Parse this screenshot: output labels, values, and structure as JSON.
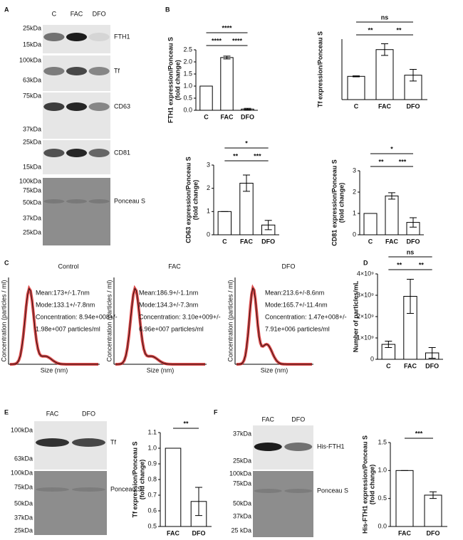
{
  "panel_letters": [
    "A",
    "B",
    "C",
    "D",
    "E",
    "F"
  ],
  "blots": [
    {
      "lanes": [
        "C",
        "FAC",
        "DFO"
      ],
      "rows": [
        {
          "name": "FTH1",
          "markers": [
            "25kDa",
            "15kDa"
          ]
        },
        {
          "name": "Tf",
          "markers": [
            "100kDa",
            "63kDa"
          ]
        },
        {
          "name": "CD63",
          "markers": [
            "75kDa",
            "37kDa"
          ]
        },
        {
          "name": "CD81",
          "markers": [
            "25kDa",
            "15kDa"
          ]
        },
        {
          "name": "Ponceau S",
          "markers": [
            "100kDa",
            "75kDa",
            "50kDa",
            "37kDa",
            "25kDa"
          ]
        }
      ]
    },
    {
      "lanes": [
        "FAC",
        "DFO"
      ],
      "rows": [
        {
          "name": "Tf",
          "markers": [
            "100kDa",
            "63kDa"
          ]
        },
        {
          "name": "Ponceau S",
          "markers": [
            "100kDa",
            "75kDa",
            "50kDa",
            "37kDa",
            "25kDa"
          ]
        }
      ]
    },
    {
      "lanes": [
        "FAC",
        "DFO"
      ],
      "rows": [
        {
          "name": "His-FTH1",
          "markers": [
            "37kDa",
            "25kDa"
          ]
        },
        {
          "name": "Ponceau S",
          "markers": [
            "100kDa",
            "75kDa",
            "50kDa",
            "37kDa",
            "25 kDa"
          ]
        }
      ]
    }
  ],
  "nta": [
    {
      "title": "Control",
      "lines": [
        "Mean:173+/-1.7nm",
        "Mode:133.1+/-7.8nm",
        "Concentration: 8.94e+008+/-",
        "1.98e+007 particles/ml"
      ],
      "x_label": "Size (nm)",
      "y_label": "Concentration (particles / ml)"
    },
    {
      "title": "FAC",
      "lines": [
        "Mean:186.9+/-1.1nm",
        "Mode:134.3+/-7.3nm",
        "Concentration: 3.10e+009+/-",
        "6.96e+007 particles/ml"
      ],
      "x_label": "Size (nm)",
      "y_label": "Concentration (particles / ml)"
    },
    {
      "title": "DFO",
      "lines": [
        "Mean:213.6+/-8.6nm",
        "Mode:165.7+/-11.4nm",
        "Concentration: 1.47e+008+/-",
        "7.91e+006 particles/ml"
      ],
      "x_label": "Size (nm)",
      "y_label": "Concentration (particles / ml)"
    }
  ],
  "chart_data": [
    {
      "type": "bar",
      "y_label": [
        "FTH1 expression/Ponceau S",
        "(fold change)"
      ],
      "categories": [
        "C",
        "FAC",
        "DFO"
      ],
      "values": [
        1.0,
        2.18,
        0.05
      ],
      "errors": [
        0,
        0.06,
        0.03
      ],
      "ylim": [
        0,
        2.5
      ],
      "yticks": [
        {
          "value": 0,
          "label": "0.0"
        },
        0.5,
        {
          "value": 1,
          "label": "1.0"
        },
        1.5,
        {
          "value": 2,
          "label": "2.0"
        },
        2.5
      ],
      "comparisons": [
        {
          "pair": [
            "C",
            "FAC"
          ],
          "label": "****"
        },
        {
          "pair": [
            "FAC",
            "DFO"
          ],
          "label": "****"
        },
        {
          "pair": [
            "C",
            "DFO"
          ],
          "label": "****"
        }
      ]
    },
    {
      "type": "bar",
      "y_label": [
        "Tf expression/Ponceau S"
      ],
      "categories": [
        "C",
        "FAC",
        "DFO"
      ],
      "values": [
        1.0,
        2.15,
        1.05
      ],
      "errors": [
        0.02,
        0.25,
        0.25
      ],
      "ylim": [
        0,
        2.6
      ],
      "comparisons": [
        {
          "pair": [
            "C",
            "FAC"
          ],
          "label": "**"
        },
        {
          "pair": [
            "FAC",
            "DFO"
          ],
          "label": "**"
        },
        {
          "pair": [
            "C",
            "DFO"
          ],
          "label": "ns"
        }
      ]
    },
    {
      "type": "bar",
      "y_label": [
        "CD63 expression/Ponceau S",
        "(fold change)"
      ],
      "categories": [
        "C",
        "FAC",
        "DFO"
      ],
      "values": [
        1.0,
        2.22,
        0.42
      ],
      "errors": [
        0,
        0.35,
        0.2
      ],
      "ylim": [
        0,
        3
      ],
      "yticks": [
        0,
        1,
        2,
        3
      ],
      "comparisons": [
        {
          "pair": [
            "C",
            "FAC"
          ],
          "label": "**"
        },
        {
          "pair": [
            "FAC",
            "DFO"
          ],
          "label": "***"
        },
        {
          "pair": [
            "C",
            "DFO"
          ],
          "label": "*"
        }
      ]
    },
    {
      "type": "bar",
      "y_label": [
        "CD81 expression/Ponceau S",
        "(fold change)"
      ],
      "categories": [
        "C",
        "FAC",
        "DFO"
      ],
      "values": [
        1.0,
        1.82,
        0.58
      ],
      "errors": [
        0,
        0.15,
        0.22
      ],
      "ylim": [
        0,
        3
      ],
      "yticks": [
        0,
        1,
        2,
        3
      ],
      "comparisons": [
        {
          "pair": [
            "C",
            "FAC"
          ],
          "label": "**"
        },
        {
          "pair": [
            "FAC",
            "DFO"
          ],
          "label": "***"
        },
        {
          "pair": [
            "C",
            "DFO"
          ],
          "label": "*"
        }
      ]
    },
    {
      "type": "bar",
      "y_label": [
        "Number of particles/mL"
      ],
      "categories": [
        "C",
        "FAC",
        "DFO"
      ],
      "values": [
        700000000,
        2950000000,
        300000000
      ],
      "errors": [
        150000000,
        800000000,
        250000000
      ],
      "ylim": [
        0,
        4000000000
      ],
      "yticks": [
        0,
        {
          "value": 1000000000,
          "label": "1×10⁹"
        },
        {
          "value": 2000000000,
          "label": "2×10⁹"
        },
        {
          "value": 3000000000,
          "label": "3×10⁹"
        },
        {
          "value": 4000000000,
          "label": "4×10⁹"
        }
      ],
      "comparisons": [
        {
          "pair": [
            "C",
            "FAC"
          ],
          "label": "**"
        },
        {
          "pair": [
            "FAC",
            "DFO"
          ],
          "label": "**"
        },
        {
          "pair": [
            "C",
            "DFO"
          ],
          "label": "ns"
        }
      ]
    },
    {
      "type": "bar",
      "y_label": [
        "Tf expression/Ponceau S",
        "(fold change)"
      ],
      "categories": [
        "FAC",
        "DFO"
      ],
      "values": [
        1.0,
        0.66
      ],
      "errors": [
        0,
        0.09
      ],
      "ylim": [
        0.5,
        1.1
      ],
      "yticks": [
        0.5,
        0.6,
        0.7,
        0.8,
        0.9,
        {
          "value": 1,
          "label": "1.0"
        },
        1.1
      ],
      "comparisons": [
        {
          "pair": [
            "FAC",
            "DFO"
          ],
          "label": "**"
        }
      ]
    },
    {
      "type": "bar",
      "y_label": [
        "His-FTH1 expression/Ponceau S",
        "(fold change)"
      ],
      "categories": [
        "FAC",
        "DFO"
      ],
      "values": [
        1.0,
        0.56
      ],
      "errors": [
        0,
        0.06
      ],
      "ylim": [
        0,
        1.5
      ],
      "yticks": [
        {
          "value": 0,
          "label": "0.0"
        },
        0.5,
        {
          "value": 1,
          "label": "1.0"
        },
        1.5
      ],
      "comparisons": [
        {
          "pair": [
            "FAC",
            "DFO"
          ],
          "label": "***"
        }
      ]
    }
  ]
}
